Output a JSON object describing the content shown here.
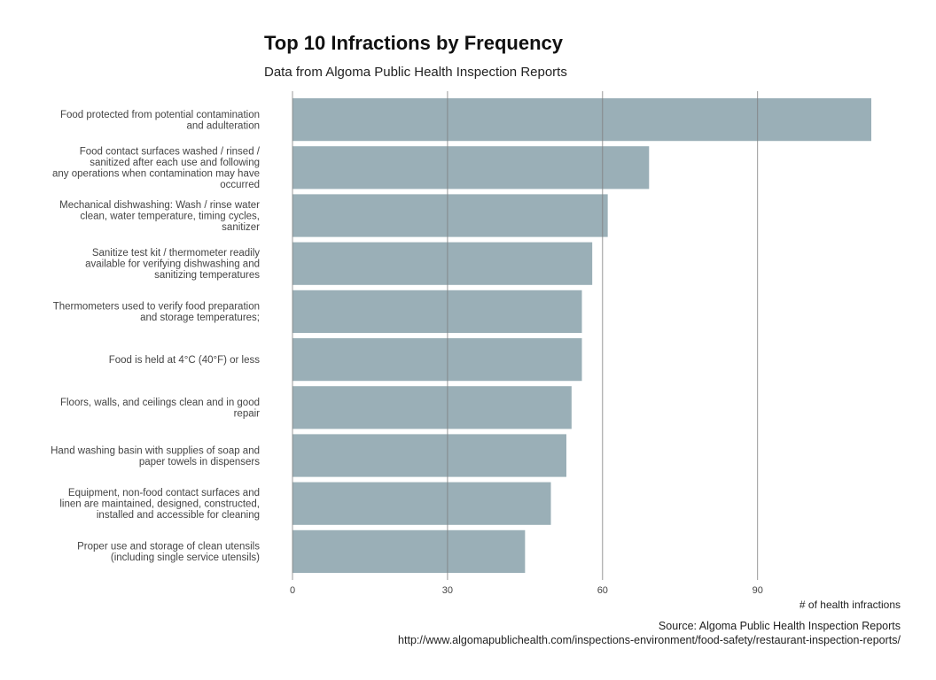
{
  "title": "Top 10 Infractions by Frequency",
  "subtitle": "Data from Algoma Public Health Inspection Reports",
  "caption": {
    "source": "Source: Algoma Public Health Inspection Reports",
    "url": "http://www.algomapublichealth.com/inspections-environment/food-safety/restaurant-inspection-reports/"
  },
  "colors": {
    "bar": "#9aafb7",
    "grid": "#7f7f7f",
    "label": "#444444"
  },
  "chart_data": {
    "type": "bar",
    "orientation": "horizontal",
    "categories": [
      "Food protected from potential contamination\nand adulteration",
      "Food contact surfaces washed / rinsed /\nsanitized after each use and following\nany operations when contamination may have\noccurred",
      "Mechanical dishwashing: Wash / rinse water\nclean, water temperature, timing cycles,\nsanitizer",
      "Sanitize test kit / thermometer readily\navailable for verifying dishwashing and\nsanitizing temperatures",
      "Thermometers used to verify food preparation\nand storage temperatures;",
      "Food is held at 4°C (40°F) or less",
      "Floors, walls, and ceilings clean and in good\nrepair",
      "Hand washing basin with supplies of soap and\npaper towels in dispensers",
      "Equipment, non-food contact surfaces and\nlinen are maintained, designed, constructed,\ninstalled and accessible for cleaning",
      "Proper use and storage of clean utensils\n(including single service utensils)"
    ],
    "values": [
      112,
      69,
      61,
      58,
      56,
      56,
      54,
      53,
      50,
      45
    ],
    "xlabel": "# of health infractions",
    "ylabel": "",
    "xlim": [
      0,
      112
    ],
    "xticks": [
      0,
      30,
      60,
      90
    ],
    "grid": true,
    "legend": "none"
  }
}
